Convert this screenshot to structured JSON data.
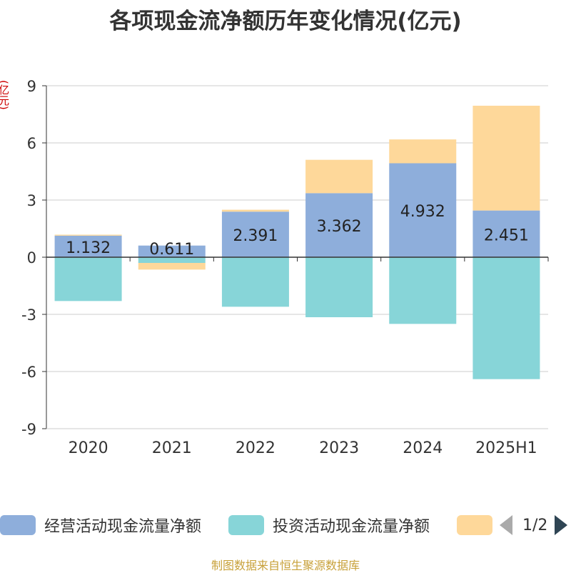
{
  "title": "各项现金流净额历年变化情况(亿元)",
  "unit_label": "(亿元)",
  "source": "制图数据来自恒生聚源数据库",
  "pager": "1/2",
  "colors": {
    "operating": "#8eaedb",
    "investing": "#87d5d8",
    "financing": "#fed89a",
    "grid": "#cccccc",
    "axis": "#333333",
    "arrow_inactive": "#aaaaaa",
    "arrow_active": "#2f4554"
  },
  "chart_data": {
    "type": "bar",
    "stacked": true,
    "categories": [
      "2020",
      "2021",
      "2022",
      "2023",
      "2024",
      "2025H1"
    ],
    "ylim": [
      -9,
      9
    ],
    "yticks": [
      9,
      6,
      3,
      0,
      -3,
      -6,
      -9
    ],
    "series": [
      {
        "name": "经营活动现金流量净额",
        "color_key": "operating",
        "values": [
          1.132,
          0.611,
          2.391,
          3.362,
          4.932,
          2.451
        ]
      },
      {
        "name": "投资活动现金流量净额",
        "color_key": "investing",
        "values": [
          -2.3,
          -0.3,
          -2.6,
          -3.15,
          -3.5,
          -6.4
        ]
      },
      {
        "name": "",
        "color_key": "financing",
        "values": [
          0.05,
          -0.35,
          0.1,
          1.75,
          1.25,
          5.5
        ]
      }
    ],
    "data_labels": [
      "1.132",
      "0.611",
      "2.391",
      "3.362",
      "4.932",
      "2.451"
    ],
    "grid": true,
    "legend_position": "bottom"
  }
}
